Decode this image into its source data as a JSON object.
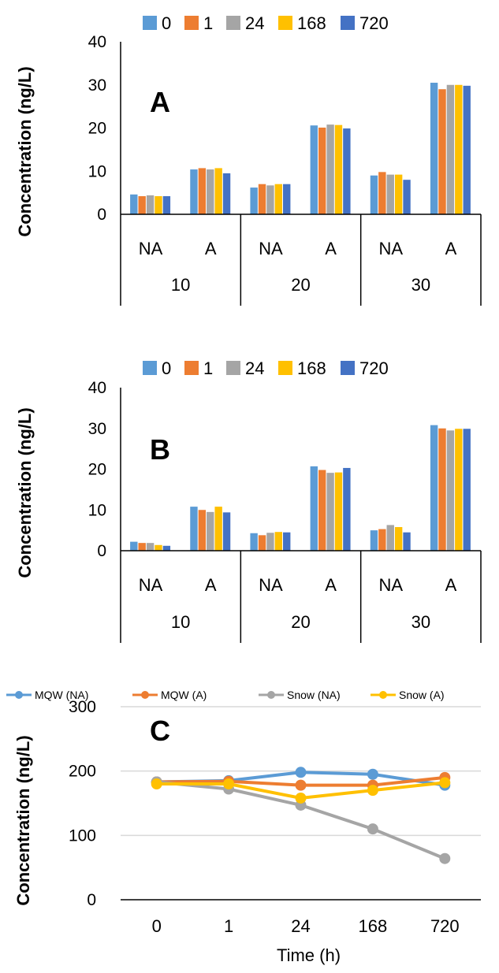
{
  "chart_data": [
    {
      "type": "bar",
      "panel_label": "A",
      "ylabel": "Concentration (ng/L)",
      "ylim": [
        0,
        40
      ],
      "yticks": [
        0,
        10,
        20,
        30,
        40
      ],
      "grid": false,
      "legend_placement": "top",
      "categories": [
        "NA",
        "A",
        "NA",
        "A",
        "NA",
        "A"
      ],
      "groups": [
        "10",
        "20",
        "30"
      ],
      "series": [
        {
          "name": "0",
          "color": "#5B9BD5",
          "values": [
            4.6,
            10.4,
            6.2,
            20.6,
            9.0,
            30.5
          ]
        },
        {
          "name": "1",
          "color": "#ED7D31",
          "values": [
            4.2,
            10.7,
            7.0,
            20.1,
            9.8,
            29.0
          ]
        },
        {
          "name": "24",
          "color": "#A5A5A5",
          "values": [
            4.4,
            10.4,
            6.7,
            20.8,
            9.2,
            30.0
          ]
        },
        {
          "name": "168",
          "color": "#FFC000",
          "values": [
            4.2,
            10.7,
            7.0,
            20.7,
            9.2,
            30.0
          ]
        },
        {
          "name": "720",
          "color": "#4472C4",
          "values": [
            4.2,
            9.5,
            7.0,
            19.9,
            8.0,
            29.8
          ]
        }
      ]
    },
    {
      "type": "bar",
      "panel_label": "B",
      "ylabel": "Concentration (ng/L)",
      "ylim": [
        0,
        40
      ],
      "yticks": [
        0,
        10,
        20,
        30,
        40
      ],
      "grid": false,
      "legend_placement": "top",
      "categories": [
        "NA",
        "A",
        "NA",
        "A",
        "NA",
        "A"
      ],
      "groups": [
        "10",
        "20",
        "30"
      ],
      "series": [
        {
          "name": "0",
          "color": "#5B9BD5",
          "values": [
            2.2,
            10.8,
            4.3,
            20.7,
            5.0,
            30.8
          ]
        },
        {
          "name": "1",
          "color": "#ED7D31",
          "values": [
            1.9,
            10.0,
            3.8,
            19.8,
            5.3,
            30.0
          ]
        },
        {
          "name": "24",
          "color": "#A5A5A5",
          "values": [
            1.9,
            9.5,
            4.4,
            19.1,
            6.3,
            29.5
          ]
        },
        {
          "name": "168",
          "color": "#FFC000",
          "values": [
            1.4,
            10.8,
            4.6,
            19.2,
            5.8,
            29.9
          ]
        },
        {
          "name": "720",
          "color": "#4472C4",
          "values": [
            1.2,
            9.4,
            4.5,
            20.3,
            4.5,
            29.9
          ]
        }
      ]
    },
    {
      "type": "line",
      "panel_label": "C",
      "ylabel": "Concentration (ng/L)",
      "xlabel": "Time (h)",
      "ylim": [
        0,
        300
      ],
      "yticks": [
        0,
        100,
        200,
        300
      ],
      "grid": true,
      "legend_placement": "top",
      "categories": [
        "0",
        "1",
        "24",
        "168",
        "720"
      ],
      "series": [
        {
          "name": "MQW (NA)",
          "color": "#5B9BD5",
          "values": [
            183,
            185,
            198,
            195,
            178
          ]
        },
        {
          "name": "MQW (A)",
          "color": "#ED7D31",
          "values": [
            183,
            184,
            178,
            178,
            190
          ]
        },
        {
          "name": "Snow (NA)",
          "color": "#A5A5A5",
          "values": [
            183,
            172,
            147,
            110,
            64
          ]
        },
        {
          "name": "Snow (A)",
          "color": "#FFC000",
          "values": [
            180,
            180,
            158,
            170,
            182
          ]
        }
      ]
    }
  ]
}
